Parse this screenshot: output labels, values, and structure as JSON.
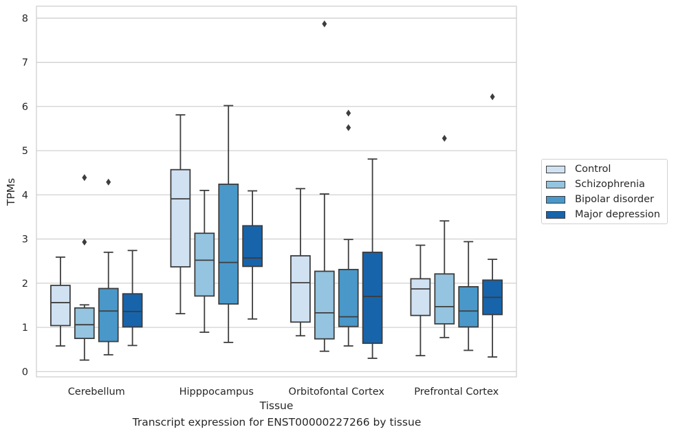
{
  "chart_data": {
    "type": "box",
    "categories": [
      "Cerebellum",
      "Hipppocampus",
      "Orbitofontal Cortex",
      "Prefrontal Cortex"
    ],
    "xlabel": "Tissue",
    "ylabel": "TPMs",
    "caption": "Transcript expression for ENST00000227266 by tissue",
    "ylim": [
      -0.12,
      8.27
    ],
    "yticks": [
      0,
      1,
      2,
      3,
      4,
      5,
      6,
      7,
      8
    ],
    "grid": "horizontal",
    "legend_position": "right",
    "series": [
      {
        "name": "Control",
        "color": "#d0e1f2",
        "boxes": [
          {
            "whisker_low": 0.58,
            "q1": 1.04,
            "median": 1.56,
            "q3": 1.95,
            "whisker_high": 2.59,
            "outliers": []
          },
          {
            "whisker_low": 1.31,
            "q1": 2.37,
            "median": 3.91,
            "q3": 4.57,
            "whisker_high": 5.81,
            "outliers": []
          },
          {
            "whisker_low": 0.81,
            "q1": 1.12,
            "median": 2.01,
            "q3": 2.62,
            "whisker_high": 4.14,
            "outliers": []
          },
          {
            "whisker_low": 0.36,
            "q1": 1.27,
            "median": 1.87,
            "q3": 2.1,
            "whisker_high": 2.86,
            "outliers": []
          }
        ]
      },
      {
        "name": "Schizophrenia",
        "color": "#94c4df",
        "boxes": [
          {
            "whisker_low": 0.26,
            "q1": 0.75,
            "median": 1.06,
            "q3": 1.44,
            "whisker_high": 1.51,
            "outliers": [
              2.93,
              4.39
            ]
          },
          {
            "whisker_low": 0.89,
            "q1": 1.71,
            "median": 2.52,
            "q3": 3.13,
            "whisker_high": 4.1,
            "outliers": []
          },
          {
            "whisker_low": 0.46,
            "q1": 0.74,
            "median": 1.33,
            "q3": 2.27,
            "whisker_high": 4.02,
            "outliers": [
              7.87
            ]
          },
          {
            "whisker_low": 0.77,
            "q1": 1.08,
            "median": 1.47,
            "q3": 2.21,
            "whisker_high": 3.41,
            "outliers": [
              5.28
            ]
          }
        ]
      },
      {
        "name": "Bipolar disorder",
        "color": "#4a98c9",
        "boxes": [
          {
            "whisker_low": 0.38,
            "q1": 0.68,
            "median": 1.37,
            "q3": 1.88,
            "whisker_high": 2.7,
            "outliers": [
              4.29
            ]
          },
          {
            "whisker_low": 0.66,
            "q1": 1.53,
            "median": 2.47,
            "q3": 4.24,
            "whisker_high": 6.02,
            "outliers": []
          },
          {
            "whisker_low": 0.58,
            "q1": 1.02,
            "median": 1.24,
            "q3": 2.31,
            "whisker_high": 2.99,
            "outliers": [
              5.52,
              5.85
            ]
          },
          {
            "whisker_low": 0.48,
            "q1": 1.01,
            "median": 1.37,
            "q3": 1.92,
            "whisker_high": 2.94,
            "outliers": []
          }
        ]
      },
      {
        "name": "Major depression",
        "color": "#1764ab",
        "boxes": [
          {
            "whisker_low": 0.59,
            "q1": 1.01,
            "median": 1.36,
            "q3": 1.76,
            "whisker_high": 2.74,
            "outliers": []
          },
          {
            "whisker_low": 1.19,
            "q1": 2.38,
            "median": 2.57,
            "q3": 3.3,
            "whisker_high": 4.09,
            "outliers": []
          },
          {
            "whisker_low": 0.3,
            "q1": 0.64,
            "median": 1.7,
            "q3": 2.7,
            "whisker_high": 4.81,
            "outliers": []
          },
          {
            "whisker_low": 0.33,
            "q1": 1.29,
            "median": 1.68,
            "q3": 2.07,
            "whisker_high": 2.54,
            "outliers": [
              6.22
            ]
          }
        ]
      }
    ]
  }
}
